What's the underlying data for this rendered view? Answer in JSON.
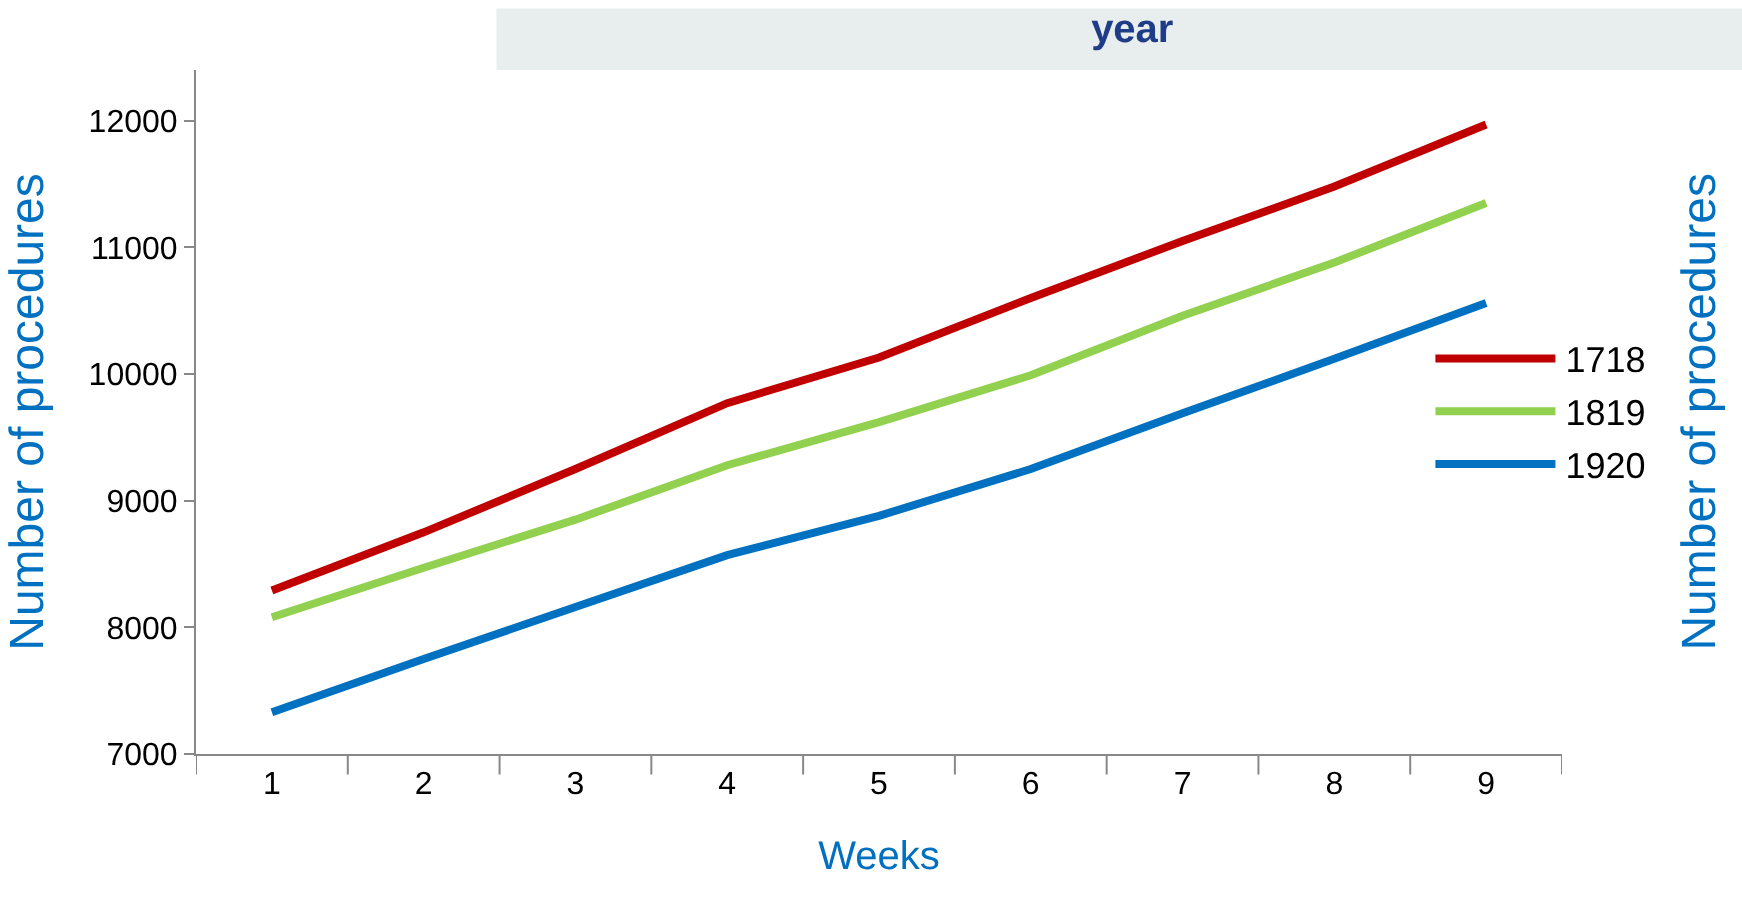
{
  "chart_data": {
    "type": "line",
    "title": "year",
    "xlabel": "Weeks",
    "ylabel": "Number of procedures",
    "y2label": "Number of procedures",
    "categories": [
      "1",
      "2",
      "3",
      "4",
      "5",
      "6",
      "7",
      "8",
      "9"
    ],
    "series": [
      {
        "name": "1718",
        "color": "#c00000",
        "values": [
          8290,
          8750,
          9250,
          9770,
          10130,
          10600,
          11050,
          11480,
          11970
        ]
      },
      {
        "name": "1819",
        "color": "#92d050",
        "values": [
          8080,
          8470,
          8850,
          9280,
          9620,
          9990,
          10460,
          10880,
          11350
        ]
      },
      {
        "name": "1920",
        "color": "#0070c0",
        "values": [
          7330,
          7750,
          8160,
          8570,
          8880,
          9250,
          9690,
          10120,
          10560
        ]
      }
    ],
    "ylim": [
      7000,
      12400
    ],
    "yticks": [
      7000,
      8000,
      9000,
      10000,
      11000,
      12000
    ],
    "grid": false,
    "legend": "right",
    "marker": "none",
    "line_style": "solid"
  }
}
